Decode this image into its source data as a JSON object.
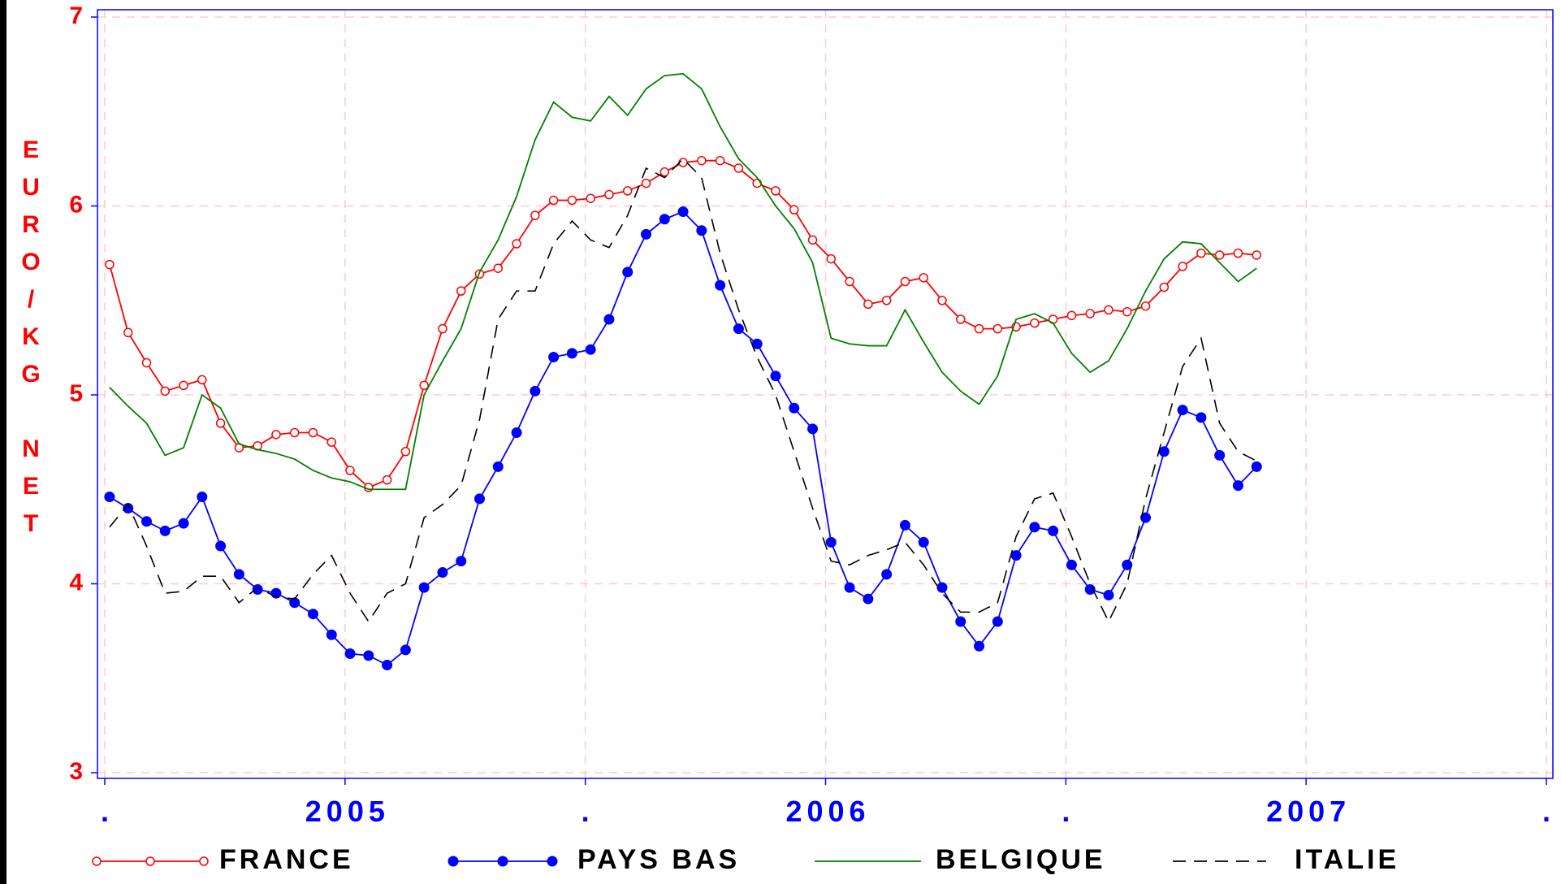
{
  "chart_data": {
    "type": "line",
    "y_label": "EURO/KG NET",
    "x": [
      2004.51,
      2004.5485,
      2004.587,
      2004.6255,
      2004.664,
      2004.7025,
      2004.741,
      2004.7795,
      2004.818,
      2004.8565,
      2004.895,
      2004.9335,
      2004.972,
      2005.0105,
      2005.049,
      2005.0875,
      2005.126,
      2005.1645,
      2005.203,
      2005.2415,
      2005.28,
      2005.3185,
      2005.357,
      2005.3955,
      2005.434,
      2005.4725,
      2005.511,
      2005.5495,
      2005.588,
      2005.6265,
      2005.665,
      2005.7035,
      2005.742,
      2005.7805,
      2005.819,
      2005.8575,
      2005.896,
      2005.9345,
      2005.973,
      2006.0115,
      2006.05,
      2006.0885,
      2006.127,
      2006.1655,
      2006.204,
      2006.2425,
      2006.281,
      2006.3195,
      2006.358,
      2006.3965,
      2006.435,
      2006.4735,
      2006.512,
      2006.5505,
      2006.589,
      2006.6275,
      2006.666,
      2006.7045,
      2006.743,
      2006.7815,
      2006.82,
      2006.8585,
      2006.897
    ],
    "series": [
      {
        "name": "FRANCE",
        "color": "#ff0000",
        "marker": "open-circle",
        "dash": false,
        "values": [
          5.69,
          5.33,
          5.17,
          5.02,
          5.05,
          5.08,
          4.85,
          4.72,
          4.73,
          4.79,
          4.8,
          4.8,
          4.75,
          4.6,
          4.51,
          4.55,
          4.7,
          5.05,
          5.35,
          5.55,
          5.64,
          5.67,
          5.8,
          5.95,
          6.03,
          6.03,
          6.04,
          6.06,
          6.08,
          6.12,
          6.18,
          6.23,
          6.24,
          6.24,
          6.2,
          6.12,
          6.08,
          5.98,
          5.82,
          5.72,
          5.6,
          5.48,
          5.5,
          5.6,
          5.62,
          5.5,
          5.4,
          5.35,
          5.35,
          5.36,
          5.38,
          5.4,
          5.42,
          5.43,
          5.45,
          5.44,
          5.47,
          5.57,
          5.68,
          5.75,
          5.74,
          5.75,
          5.74
        ]
      },
      {
        "name": "PAYS BAS",
        "color": "#0000ff",
        "marker": "filled-circle",
        "dash": false,
        "values": [
          4.46,
          4.4,
          4.33,
          4.28,
          4.32,
          4.46,
          4.2,
          4.05,
          3.97,
          3.95,
          3.9,
          3.84,
          3.73,
          3.63,
          3.62,
          3.57,
          3.65,
          3.98,
          4.06,
          4.12,
          4.45,
          4.62,
          4.8,
          5.02,
          5.2,
          5.22,
          5.24,
          5.4,
          5.65,
          5.85,
          5.93,
          5.97,
          5.87,
          5.58,
          5.35,
          5.27,
          5.1,
          4.93,
          4.82,
          4.22,
          3.98,
          3.92,
          4.05,
          4.31,
          4.22,
          3.98,
          3.8,
          3.67,
          3.8,
          4.15,
          4.3,
          4.28,
          4.1,
          3.97,
          3.94,
          4.1,
          4.35,
          4.7,
          4.92,
          4.88,
          4.68,
          4.52,
          4.62
        ]
      },
      {
        "name": "BELGIQUE",
        "color": "#008000",
        "marker": "none",
        "dash": false,
        "values": [
          5.04,
          4.94,
          4.85,
          4.68,
          4.72,
          5.0,
          4.93,
          4.74,
          4.71,
          4.69,
          4.66,
          4.6,
          4.56,
          4.54,
          4.5,
          4.5,
          4.5,
          5.0,
          5.18,
          5.35,
          5.65,
          5.82,
          6.05,
          6.35,
          6.55,
          6.47,
          6.45,
          6.58,
          6.48,
          6.62,
          6.69,
          6.7,
          6.62,
          6.42,
          6.25,
          6.15,
          6.0,
          5.88,
          5.7,
          5.3,
          5.27,
          5.26,
          5.26,
          5.45,
          5.28,
          5.12,
          5.02,
          4.95,
          5.1,
          5.4,
          5.43,
          5.38,
          5.22,
          5.12,
          5.18,
          5.35,
          5.55,
          5.72,
          5.81,
          5.8,
          5.7,
          5.6,
          5.67
        ]
      },
      {
        "name": "ITALIE",
        "color": "#000000",
        "marker": "none",
        "dash": true,
        "values": [
          4.3,
          4.42,
          4.2,
          3.95,
          3.96,
          4.04,
          4.04,
          3.9,
          3.98,
          3.93,
          3.92,
          4.05,
          4.15,
          3.95,
          3.8,
          3.95,
          4.0,
          4.35,
          4.42,
          4.52,
          4.87,
          5.4,
          5.55,
          5.55,
          5.8,
          5.92,
          5.82,
          5.78,
          5.95,
          6.2,
          6.15,
          6.25,
          6.15,
          5.75,
          5.45,
          5.2,
          5.0,
          4.7,
          4.4,
          4.12,
          4.1,
          4.15,
          4.18,
          4.22,
          4.1,
          3.95,
          3.85,
          3.85,
          3.9,
          4.25,
          4.45,
          4.48,
          4.25,
          4.0,
          3.8,
          4.0,
          4.45,
          4.8,
          5.15,
          5.3,
          4.85,
          4.7,
          4.65
        ]
      }
    ],
    "xlim": [
      2004.5,
      2007.5
    ],
    "xticks": [
      {
        "value": 2004.5,
        "label": "."
      },
      2005,
      {
        "value": 2005.5,
        "label": "."
      },
      2006,
      {
        "value": 2006.5,
        "label": "."
      },
      2007,
      {
        "value": 2007.5,
        "label": "."
      }
    ],
    "ylim": [
      3,
      7
    ],
    "yticks": [
      3,
      4,
      5,
      6,
      7
    ],
    "grid": true,
    "legend": "bottom"
  }
}
